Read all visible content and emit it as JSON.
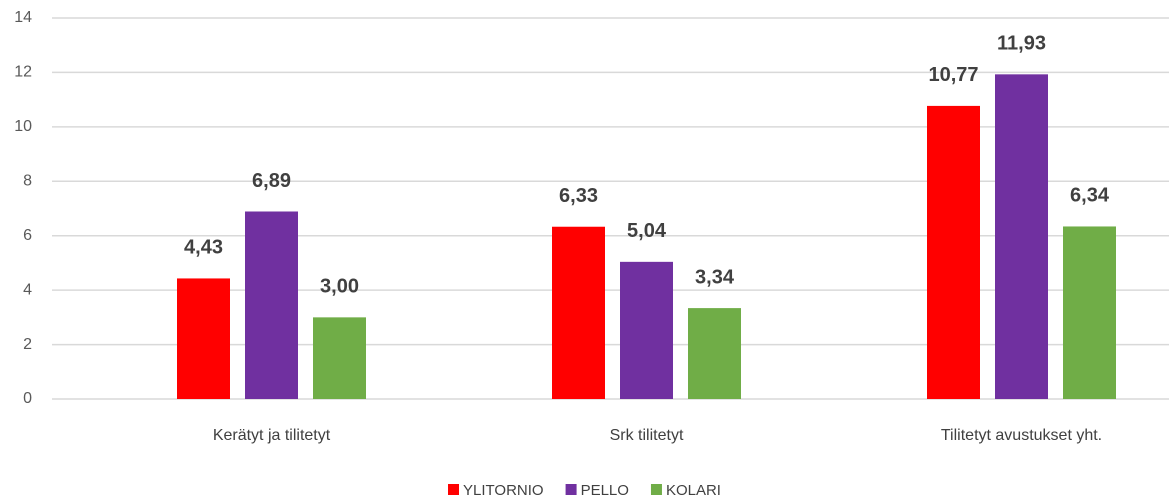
{
  "chart_data": {
    "type": "bar",
    "categories": [
      "Kerätyt ja tilitetyt",
      "Srk tilitetyt",
      "Tilitetyt avustukset yht."
    ],
    "series": [
      {
        "name": "YLITORNIO",
        "color": "#ff0000",
        "values": [
          4.43,
          6.33,
          10.77
        ],
        "value_labels": [
          "4,43",
          "6,33",
          "10,77"
        ]
      },
      {
        "name": "PELLO",
        "color": "#7030a0",
        "values": [
          6.89,
          5.04,
          11.93
        ],
        "value_labels": [
          "6,89",
          "5,04",
          "11,93"
        ]
      },
      {
        "name": "KOLARI",
        "color": "#70ad47",
        "values": [
          3.0,
          3.34,
          6.34
        ],
        "value_labels": [
          "3,00",
          "3,34",
          "6,34"
        ]
      }
    ],
    "ylim": [
      0,
      14
    ],
    "yticks": [
      0,
      2,
      4,
      6,
      8,
      10,
      12,
      14
    ],
    "grid": true,
    "legend": "bottom"
  }
}
